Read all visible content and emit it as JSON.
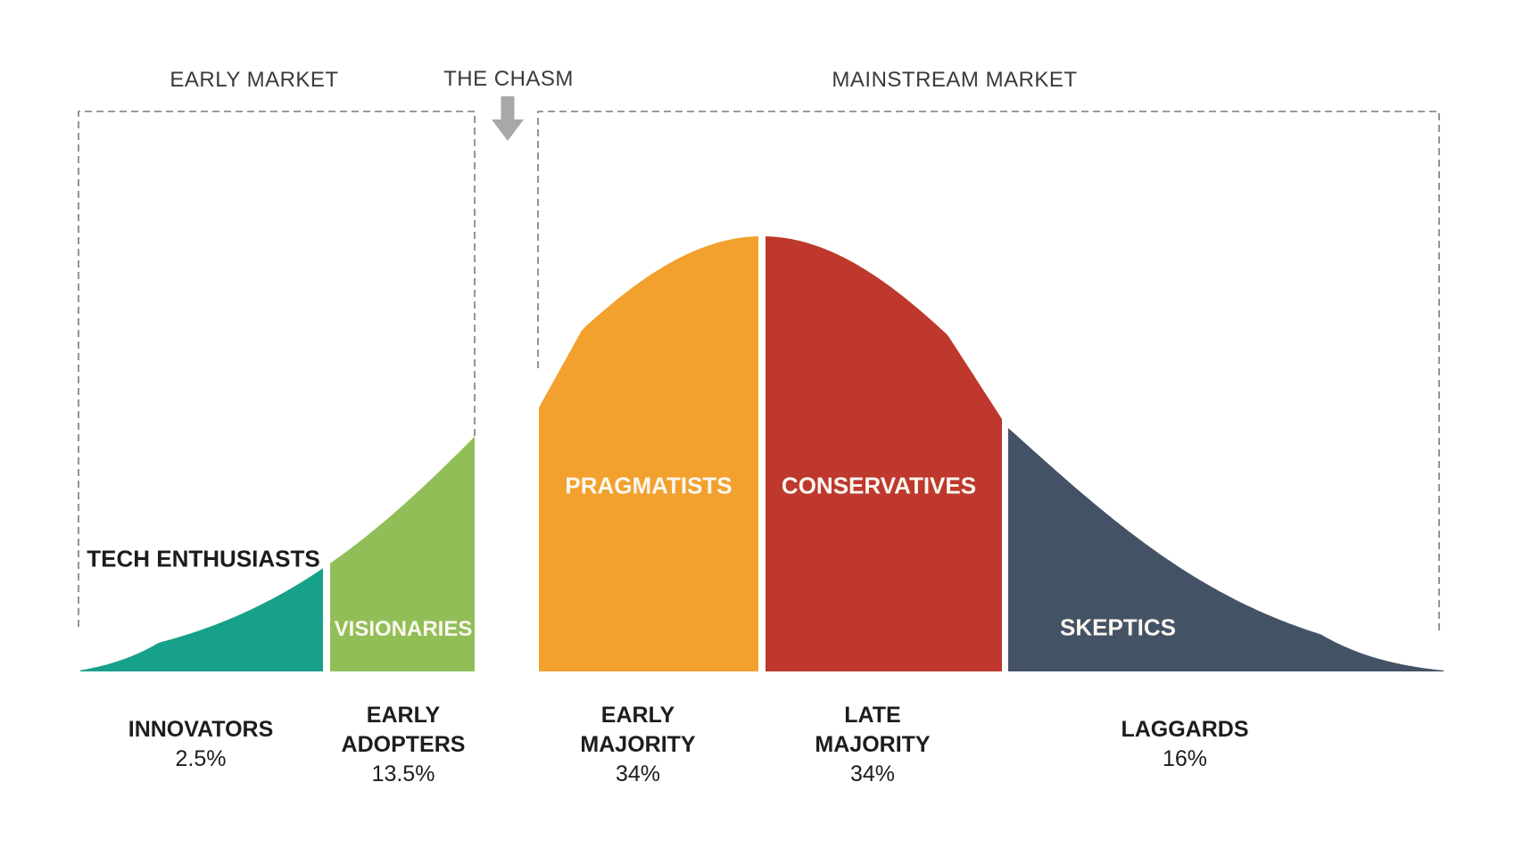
{
  "top_labels": {
    "early_market": "EARLY MARKET",
    "the_chasm": "THE CHASM",
    "mainstream_market": "MAINSTREAM MARKET"
  },
  "colors": {
    "teal": "#17A08A",
    "green": "#92BE57",
    "orange": "#F2A12E",
    "red": "#BE382D",
    "navy": "#445266",
    "arrow_gray": "#A8A8A8",
    "dashed_gray": "#7A7A7A",
    "text_dark": "#1d1d1d",
    "label_on_curve": "#fbf7ef"
  },
  "segments": [
    {
      "id": "innovators",
      "region_label": "TECH ENTHUSIASTS",
      "name_line1": "INNOVATORS",
      "name_line2": "",
      "pct": "2.5%",
      "color": "#17A08A"
    },
    {
      "id": "early-adopters",
      "region_label": "VISIONARIES",
      "name_line1": "EARLY",
      "name_line2": "ADOPTERS",
      "pct": "13.5%",
      "color": "#92BE57"
    },
    {
      "id": "early-majority",
      "region_label": "PRAGMATISTS",
      "name_line1": "EARLY",
      "name_line2": "MAJORITY",
      "pct": "34%",
      "color": "#F2A12E"
    },
    {
      "id": "late-majority",
      "region_label": "CONSERVATIVES",
      "name_line1": "LATE",
      "name_line2": "MAJORITY",
      "pct": "34%",
      "color": "#BE382D"
    },
    {
      "id": "laggards",
      "region_label": "SKEPTICS",
      "name_line1": "LAGGARDS",
      "name_line2": "",
      "pct": "16%",
      "color": "#445266"
    }
  ],
  "chart_data": {
    "type": "area",
    "description": "Technology adoption lifecycle bell curve split into five segments, with a chasm gap between the early market and mainstream market",
    "categories": [
      "INNOVATORS",
      "EARLY ADOPTERS",
      "EARLY MAJORITY",
      "LATE MAJORITY",
      "LAGGARDS"
    ],
    "values": [
      2.5,
      13.5,
      34,
      34,
      16
    ],
    "value_unit": "%",
    "segment_personas": [
      "TECH ENTHUSIASTS",
      "VISIONARIES",
      "PRAGMATISTS",
      "CONSERVATIVES",
      "SKEPTICS"
    ],
    "annotations": [
      "EARLY MARKET",
      "THE CHASM",
      "MAINSTREAM MARKET"
    ],
    "legend_position": "none",
    "grid": false
  }
}
